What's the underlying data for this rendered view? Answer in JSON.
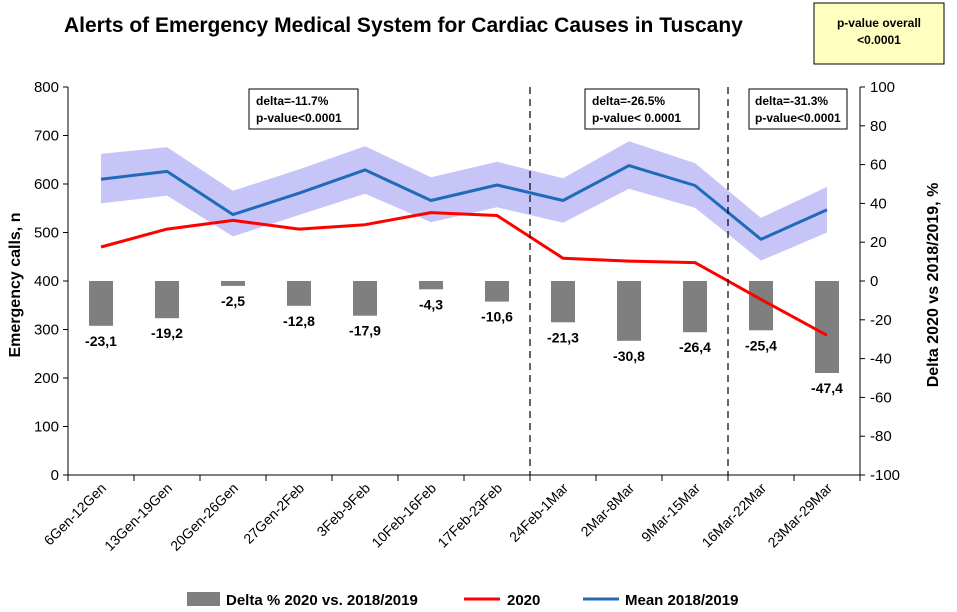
{
  "chart_data": {
    "type": "bar+line",
    "title": "Alerts of Emergency Medical System for Cardiac Causes in Tuscany",
    "ylabel": "Emergency calls, n",
    "y2label": "Delta 2020 vs 2018/2019, %",
    "ylim": [
      0,
      800
    ],
    "y2lim": [
      -100,
      100
    ],
    "yticks": [
      "0",
      "100",
      "200",
      "300",
      "400",
      "500",
      "600",
      "700",
      "800"
    ],
    "y2ticks": [
      "-100",
      "-80",
      "-60",
      "-40",
      "-20",
      "0",
      "20",
      "40",
      "60",
      "80",
      "100"
    ],
    "categories": [
      "6Gen-12Gen",
      "13Gen-19Gen",
      "20Gen-26Gen",
      "27Gen-2Feb",
      "3Feb-9Feb",
      "10Feb-16Feb",
      "17Feb-23Feb",
      "24Feb-1Mar",
      "2Mar-8Mar",
      "9Mar-15Mar",
      "16Mar-22Mar",
      "23Mar-29Mar"
    ],
    "series": [
      {
        "name": "Delta % 2020 vs. 2018/2019",
        "kind": "bar",
        "axis": "right",
        "color": "#7f7f7f",
        "values": [
          -23.1,
          -19.2,
          -2.5,
          -12.8,
          -17.9,
          -4.3,
          -10.6,
          -21.3,
          -30.8,
          -26.4,
          -25.4,
          -47.4
        ],
        "labels": [
          "-23,1",
          "-19,2",
          "-2,5",
          "-12,8",
          "-17,9",
          "-4,3",
          "-10,6",
          "-21,3",
          "-30,8",
          "-26,4",
          "-25,4",
          "-47,4"
        ]
      },
      {
        "name": "2020",
        "kind": "line",
        "axis": "left",
        "color": "#ff0000",
        "values": [
          470,
          507,
          525,
          507,
          516,
          541,
          535,
          447,
          441,
          438,
          362,
          288
        ]
      },
      {
        "name": "Mean 2018/2019",
        "kind": "line",
        "axis": "left",
        "color": "#1f6bb8",
        "values": [
          610,
          626,
          537,
          581,
          629,
          566,
          598,
          566,
          638,
          597,
          486,
          547
        ],
        "band_lower": [
          560,
          576,
          492,
          536,
          580,
          521,
          552,
          520,
          590,
          551,
          442,
          500
        ],
        "band_upper": [
          662,
          676,
          586,
          630,
          678,
          614,
          646,
          612,
          688,
          643,
          530,
          594
        ],
        "band_color": "#c7c5f7"
      }
    ],
    "period_dividers": [
      "24Feb-1Mar",
      "16Mar-22Mar"
    ],
    "annotations": [
      {
        "line1": "delta=-11.7%",
        "line2": "p-value<0.0001"
      },
      {
        "line1": "delta=-26.5%",
        "line2": "p-value< 0.0001"
      },
      {
        "line1": "delta=-31.3%",
        "line2": "p-value<0.0001"
      }
    ],
    "overall_box": {
      "line1": "p-value  overall",
      "line2": "<0.0001",
      "color": "#ffffc0"
    },
    "legend_position": "bottom"
  }
}
